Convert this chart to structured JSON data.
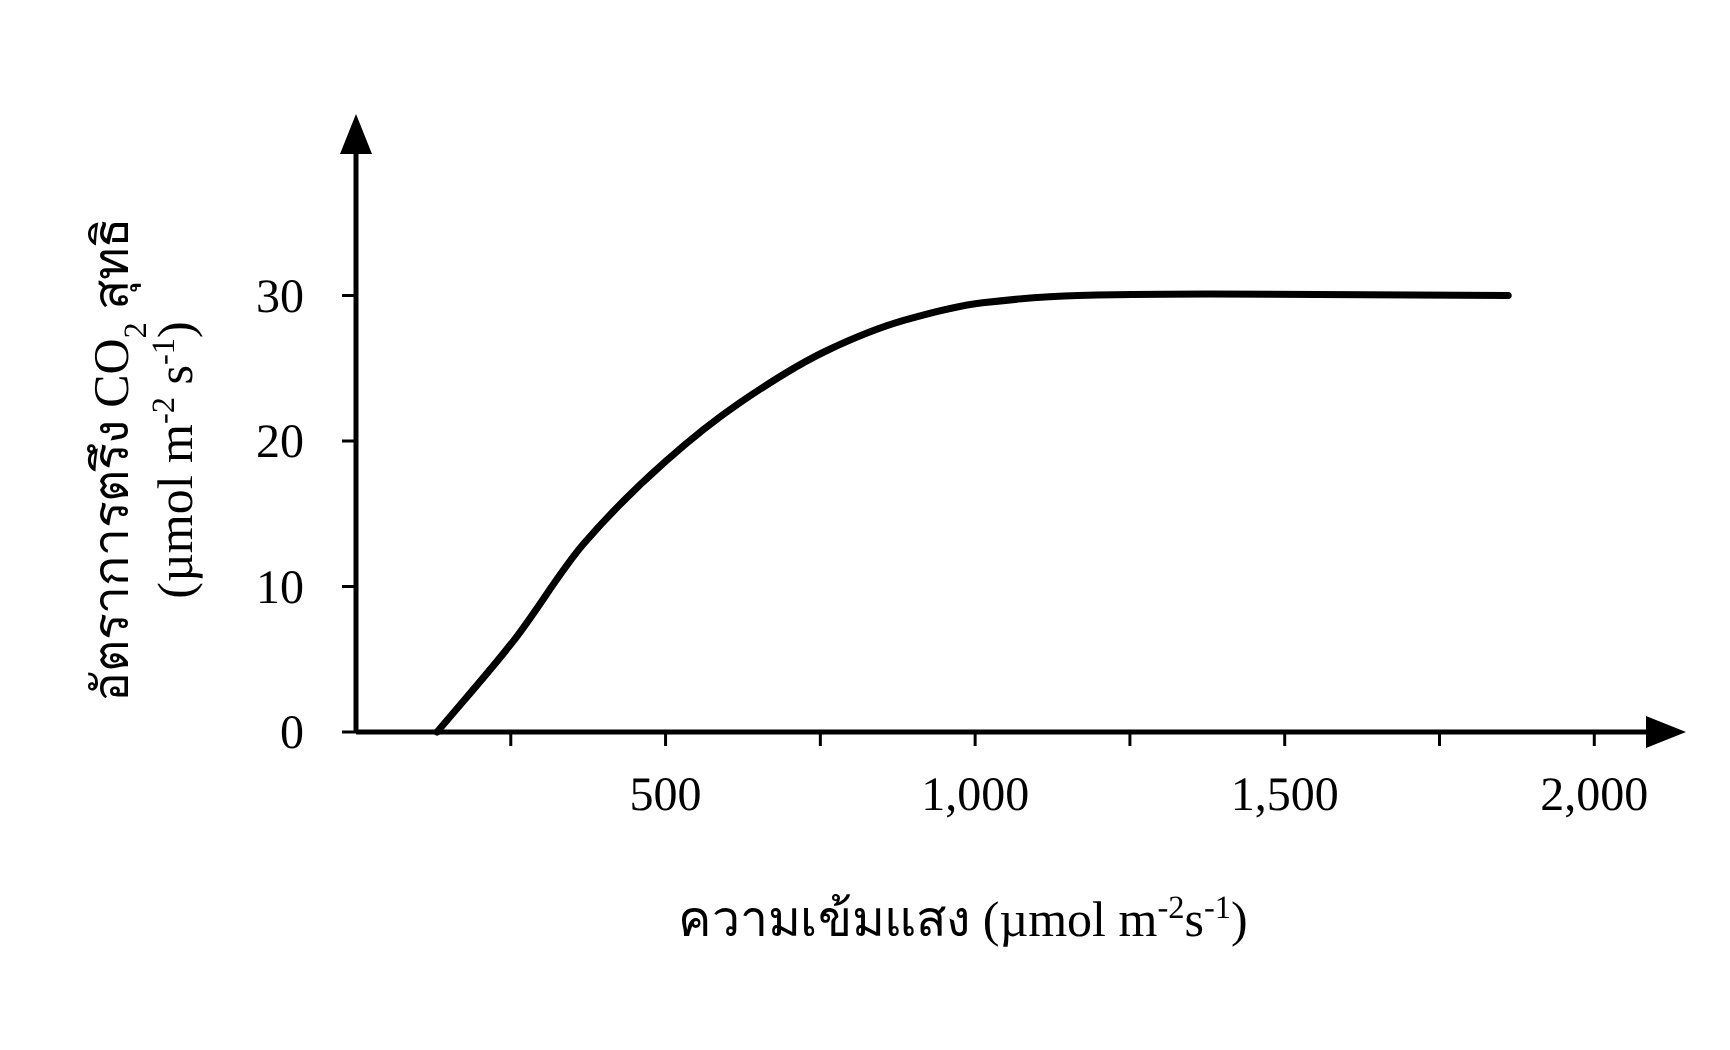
{
  "chart_data": {
    "type": "line",
    "xlabel": "ความเข้มแสง (µmol m$^{-2}$s$^{-1}$)",
    "ylabel": "อัตราการตรึง CO$_{2}$ สุทธิ (µmol m$^{-2}$ s$^{-1}$)",
    "x": [
      131,
      255,
      367,
      500,
      619,
      760,
      886,
      1012,
      1166,
      1377,
      1861
    ],
    "values": [
      0,
      6.3,
      12.9,
      18.6,
      22.6,
      26.2,
      28.3,
      29.5,
      30,
      30.1,
      30
    ],
    "color": "#000000",
    "line_style": "solid",
    "xlim": [
      0,
      2090
    ],
    "ylim": [
      0,
      40
    ],
    "xticks": [
      {
        "value": 250,
        "label": null
      },
      500,
      {
        "value": 750,
        "label": null
      },
      {
        "value": 1000,
        "label": "1,000"
      },
      {
        "value": 1250,
        "label": null
      },
      {
        "value": 1500,
        "label": "1,500"
      },
      {
        "value": 1750,
        "label": null
      },
      {
        "value": 2000,
        "label": "2,000"
      }
    ],
    "yticks": [
      0,
      10,
      20,
      30
    ]
  }
}
